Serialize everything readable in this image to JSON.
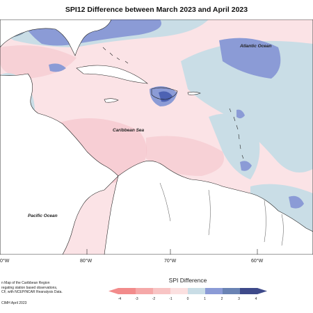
{
  "title": "SPI12 Difference between March 2023 and April 2023",
  "ocean_labels": {
    "atlantic": "Atlantic Ocean",
    "caribbean": "Caribbean Sea",
    "pacific": "Pacific Ocean"
  },
  "longitude_labels": [
    "0°W",
    "80°W",
    "70°W",
    "60°W"
  ],
  "credit_lines": [
    "n Map of the Caribbean Region",
    "regating station based observations,",
    "CF, with NCEP/NCAR Reanalysis Data."
  ],
  "copyright": "CIMH April 2023",
  "legend": {
    "title": "SPI Difference",
    "ticks": [
      "-4",
      "-3",
      "-2",
      "-1",
      "0",
      "1",
      "2",
      "3",
      "4"
    ],
    "colors": [
      "#f28b8b",
      "#f5a8a8",
      "#f8c4c4",
      "#fbe0e0",
      "#ffffff",
      "#c9dde6",
      "#8b9bd6",
      "#6a83b4",
      "#3e4a8a"
    ]
  },
  "colors": {
    "land": "#ffffff",
    "coast": "#222222",
    "dry_light": "#fbe3e6",
    "dry_medium": "#f5c4cc",
    "wet_light": "#c9dde6",
    "wet_medium": "#8b9bd6",
    "wet_strong": "#4d62b3",
    "grey_blue": "#7a92a8"
  }
}
